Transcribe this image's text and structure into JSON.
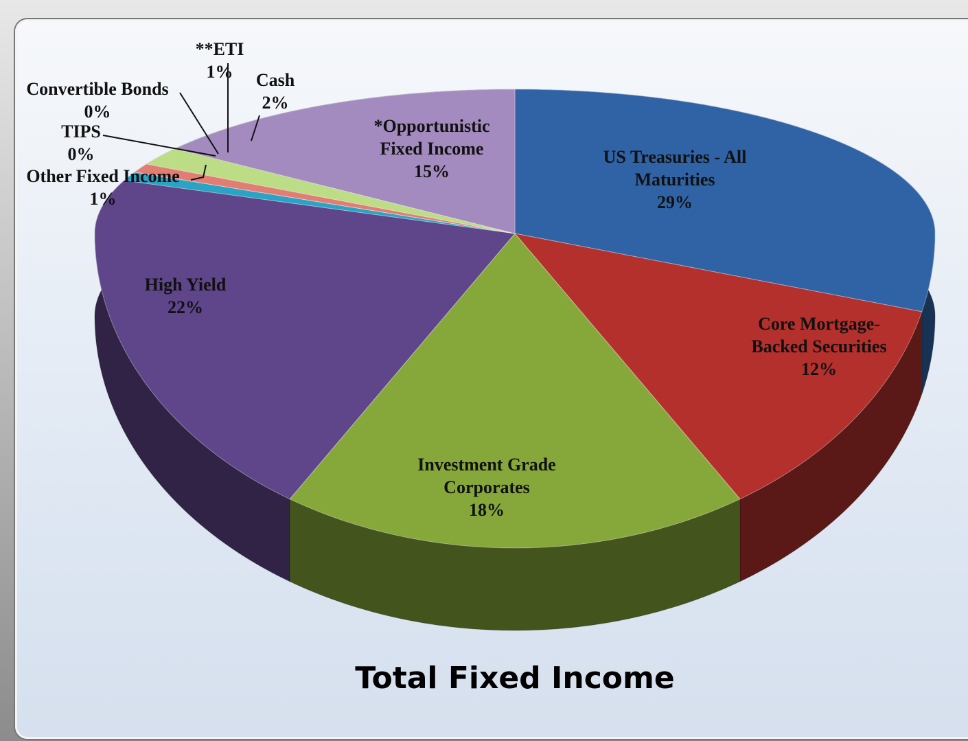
{
  "chart_data": {
    "type": "pie",
    "title": "Total Fixed Income",
    "categories": [
      "US Treasuries - All Maturities",
      "Core Mortgage-Backed Securities",
      "Investment Grade Corporates",
      "High Yield",
      "Other Fixed Income",
      "TIPS",
      "Convertible Bonds",
      "**ETI",
      "Cash",
      "*Opportunistic Fixed Income"
    ],
    "values": [
      29,
      12,
      18,
      22,
      1,
      0,
      0,
      1,
      2,
      15
    ],
    "value_labels": [
      "29%",
      "12%",
      "18%",
      "22%",
      "1%",
      "0%",
      "0%",
      "1%",
      "2%",
      "15%"
    ],
    "colors": [
      "#2f63a6",
      "#b3302d",
      "#86a83a",
      "#5f4589",
      "#2aa3c4",
      "#6a8fc8",
      "#c2c2c2",
      "#e27d74",
      "#bcdc86",
      "#a38bbf"
    ]
  }
}
